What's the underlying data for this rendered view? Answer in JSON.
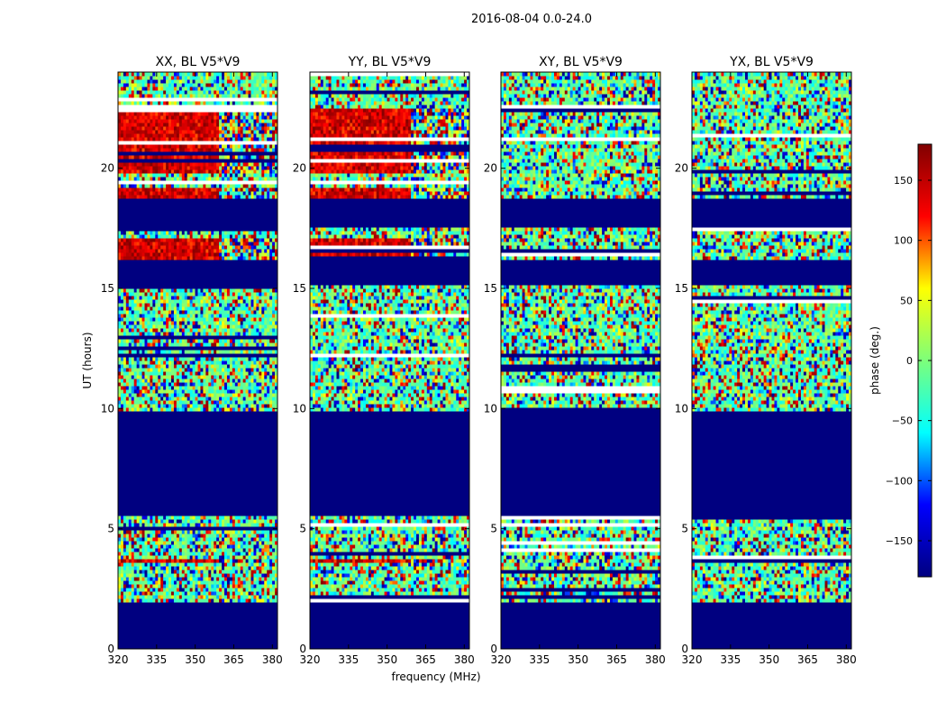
{
  "suptitle": "2016-08-04 0.0-24.0",
  "chart_data": [
    {
      "type": "heatmap",
      "title": "XX, BL V5*V9",
      "xlabel": "",
      "ylabel": "UT (hours)",
      "xlim": [
        320,
        382
      ],
      "ylim": [
        0,
        24
      ],
      "xticks": [
        320,
        335,
        350,
        365,
        380
      ],
      "yticks": [
        0,
        5,
        10,
        15,
        20
      ],
      "red_bands": [
        [
          3.6,
          3.8
        ],
        [
          16.2,
          17.1
        ],
        [
          18.7,
          19.2
        ],
        [
          19.8,
          22.5
        ]
      ]
    },
    {
      "type": "heatmap",
      "title": "YY, BL V5*V9",
      "xlabel": "frequency (MHz)",
      "ylabel": "",
      "xlim": [
        320,
        382
      ],
      "ylim": [
        0,
        24
      ],
      "xticks": [
        320,
        335,
        350,
        365,
        380
      ],
      "yticks": [
        0,
        5,
        10,
        15,
        20
      ],
      "red_bands": [
        [
          3.6,
          3.8
        ],
        [
          16.2,
          17.1
        ],
        [
          18.7,
          19.2
        ],
        [
          19.8,
          22.5
        ]
      ]
    },
    {
      "type": "heatmap",
      "title": "XY, BL V5*V9",
      "xlabel": "",
      "ylabel": "",
      "xlim": [
        320,
        382
      ],
      "ylim": [
        0,
        24
      ],
      "xticks": [
        320,
        335,
        350,
        365,
        380
      ],
      "yticks": [
        0,
        5,
        10,
        15,
        20
      ],
      "red_bands": []
    },
    {
      "type": "heatmap",
      "title": "YX, BL V5*V9",
      "xlabel": "",
      "ylabel": "",
      "xlim": [
        320,
        382
      ],
      "ylim": [
        0,
        24
      ],
      "xticks": [
        320,
        335,
        350,
        365,
        380
      ],
      "yticks": [
        0,
        5,
        10,
        15,
        20
      ],
      "red_bands": []
    }
  ],
  "flagged_ranges": [
    [
      0,
      1.9
    ],
    [
      5.5,
      9.9
    ],
    [
      15.1,
      16.2
    ],
    [
      17.6,
      18.7
    ]
  ],
  "colorbar": {
    "label": "phase (deg.)",
    "range": [
      -180,
      180
    ],
    "ticks": [
      150,
      100,
      50,
      0,
      -50,
      -100,
      -150
    ],
    "tick_labels": [
      "150",
      "100",
      "50",
      "0",
      "−50",
      "−100",
      "−150"
    ],
    "colormap": [
      "#000080",
      "#0000ff",
      "#00ffff",
      "#7dff7a",
      "#ffff00",
      "#ff0000",
      "#800000"
    ]
  }
}
